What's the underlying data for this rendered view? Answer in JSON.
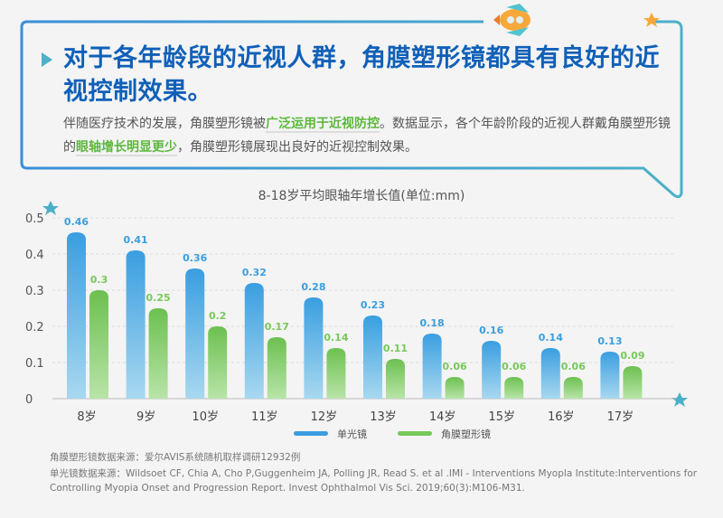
{
  "header": {
    "title": "对于各年龄段的近视人群，角膜塑形镜都具有良好的近视控制效果。",
    "desc_parts": [
      "伴随医疗技术的发展，角膜塑形镜被",
      "广泛运用于近视防控",
      "。数据显示，各个年龄阶段的近视人群戴角膜塑形镜的",
      "眼轴增长明显更少",
      "，角膜塑形镜展现出良好的近视控制效果。"
    ]
  },
  "chart_data": {
    "type": "bar",
    "title": "8-18岁平均眼轴年增长值(单位:mm)",
    "categories": [
      "8岁",
      "9岁",
      "10岁",
      "11岁",
      "12岁",
      "13岁",
      "14岁",
      "15岁",
      "16岁",
      "17岁"
    ],
    "series": [
      {
        "name": "单光镜",
        "color": "#3a9ee0",
        "values": [
          0.46,
          0.41,
          0.36,
          0.32,
          0.28,
          0.23,
          0.18,
          0.16,
          0.14,
          0.13
        ]
      },
      {
        "name": "角膜塑形镜",
        "color": "#78c85a",
        "values": [
          0.3,
          0.25,
          0.2,
          0.17,
          0.14,
          0.11,
          0.06,
          0.06,
          0.06,
          0.09
        ]
      }
    ],
    "ylim": [
      0,
      0.5
    ],
    "yticks": [
      "0",
      "0.1",
      "0.2",
      "0.3",
      "0.4",
      "0.5"
    ],
    "grid": true,
    "legend": "bottom"
  },
  "footnotes": [
    "角膜塑形镜数据来源：爱尔AVIS系统随机取样调研12932例",
    "单光镜数据来源：Wildsoet CF, Chia A, Cho P,Guggenheim JA, Polling JR, Read S. et al .IMI - Interventions Myopla Institute:Interventions for Controlling Myopia Onset and Progression Report. Invest Ophthalmol Vis Sci. 2019;60(3):M106-M31."
  ]
}
